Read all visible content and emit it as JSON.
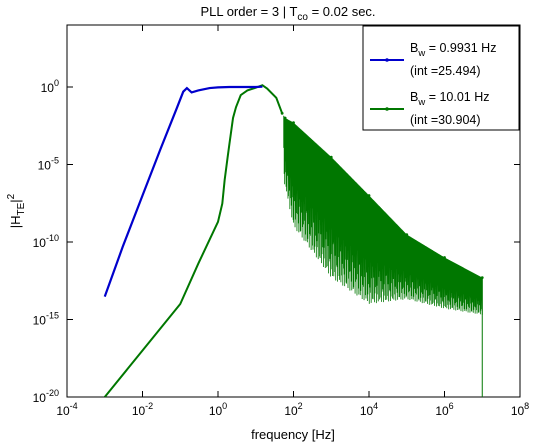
{
  "chart_data": {
    "type": "line",
    "title": {
      "prefix": "PLL order = 3  |  T",
      "sub": "co",
      "suffix": " = 0.02 sec."
    },
    "xlabel": "frequency [Hz]",
    "ylabel": {
      "prefix": "|H",
      "sub": "TE",
      "suffix": "|",
      "sup": "2"
    },
    "xscale": "log",
    "yscale": "log",
    "xlim": [
      0.0001,
      100000000
    ],
    "ylim": [
      1e-20,
      10000.0
    ],
    "xticks": [
      {
        "value": 0.0001,
        "base": "10",
        "exp": "-4"
      },
      {
        "value": 0.01,
        "base": "10",
        "exp": "-2"
      },
      {
        "value": 1,
        "base": "10",
        "exp": "0"
      },
      {
        "value": 100,
        "base": "10",
        "exp": "2"
      },
      {
        "value": 10000,
        "base": "10",
        "exp": "4"
      },
      {
        "value": 1000000,
        "base": "10",
        "exp": "6"
      },
      {
        "value": 100000000,
        "base": "10",
        "exp": "8"
      }
    ],
    "yticks": [
      {
        "value": 1,
        "base": "10",
        "exp": "0"
      },
      {
        "value": 1e-05,
        "base": "10",
        "exp": "-5"
      },
      {
        "value": 1e-10,
        "base": "10",
        "exp": "-10"
      },
      {
        "value": 1e-15,
        "base": "10",
        "exp": "-15"
      },
      {
        "value": 1e-20,
        "base": "10",
        "exp": "-20"
      }
    ],
    "grid": false,
    "legend_position": "top-right",
    "series": [
      {
        "label_prefix": "B",
        "label_sub": "w",
        "label_suffix": " = 0.9931 Hz",
        "label_line2": "(int =25.494)",
        "color": "#0000cc",
        "points": [
          [
            0.001,
            3e-14
          ],
          [
            0.003,
            5e-11
          ],
          [
            0.01,
            1e-07
          ],
          [
            0.03,
            0.0001
          ],
          [
            0.08,
            0.04
          ],
          [
            0.12,
            0.5
          ],
          [
            0.15,
            0.85
          ],
          [
            0.2,
            0.45
          ],
          [
            0.3,
            0.6
          ],
          [
            0.6,
            0.85
          ],
          [
            1.0,
            0.95
          ],
          [
            2.0,
            1.0
          ],
          [
            5.0,
            1.0
          ],
          [
            10.0,
            1.0
          ],
          [
            15.0,
            1.05
          ]
        ]
      },
      {
        "label_prefix": "B",
        "label_sub": "w",
        "label_suffix": " = 10.01 Hz",
        "label_line2": "(int =30.904)",
        "color": "#007700",
        "points": [
          [
            0.001,
            1e-20
          ],
          [
            0.01,
            1e-17
          ],
          [
            0.1,
            1e-14
          ],
          [
            0.3,
            4e-12
          ],
          [
            1.0,
            2e-09
          ],
          [
            1.3,
            3e-08
          ],
          [
            1.5,
            1e-06
          ],
          [
            1.8,
            3e-05
          ],
          [
            2.0,
            0.0002
          ],
          [
            2.5,
            0.01
          ],
          [
            3.0,
            0.05
          ],
          [
            4.0,
            0.3
          ],
          [
            6.0,
            0.6
          ],
          [
            10.0,
            0.9
          ],
          [
            15.0,
            1.3
          ],
          [
            20.0,
            0.8
          ],
          [
            35.0,
            0.2
          ],
          [
            50.0,
            0.02
          ],
          [
            60.0,
            0.01
          ],
          [
            100.0,
            0.005
          ],
          [
            1000.0,
            3e-05
          ],
          [
            10000.0,
            1e-07
          ],
          [
            100000.0,
            3e-10
          ],
          [
            1000000.0,
            1e-11
          ],
          [
            10000000.0,
            5e-13
          ]
        ],
        "envelope_lower": [
          [
            55.0,
            1e-06
          ],
          [
            100.0,
            1e-09
          ],
          [
            1000.0,
            5e-13
          ],
          [
            10000.0,
            1e-14
          ],
          [
            100000.0,
            2e-14
          ],
          [
            1000000.0,
            5e-15
          ],
          [
            10000000.0,
            2e-15
          ]
        ]
      }
    ]
  }
}
